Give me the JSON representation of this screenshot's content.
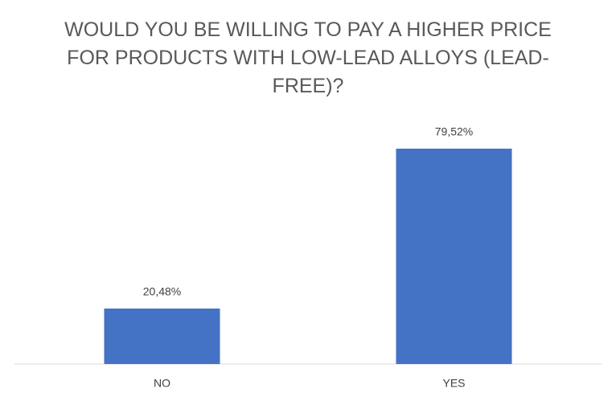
{
  "chart_data": {
    "type": "bar",
    "title": "WOULD YOU BE WILLING TO PAY A HIGHER PRICE FOR PRODUCTS WITH LOW-LEAD ALLOYS (LEAD-FREE)?",
    "categories": [
      "NO",
      "YES"
    ],
    "values": [
      20.48,
      79.52
    ],
    "value_labels": [
      "20,48%",
      "79,52%"
    ],
    "color": "#4472c4"
  }
}
